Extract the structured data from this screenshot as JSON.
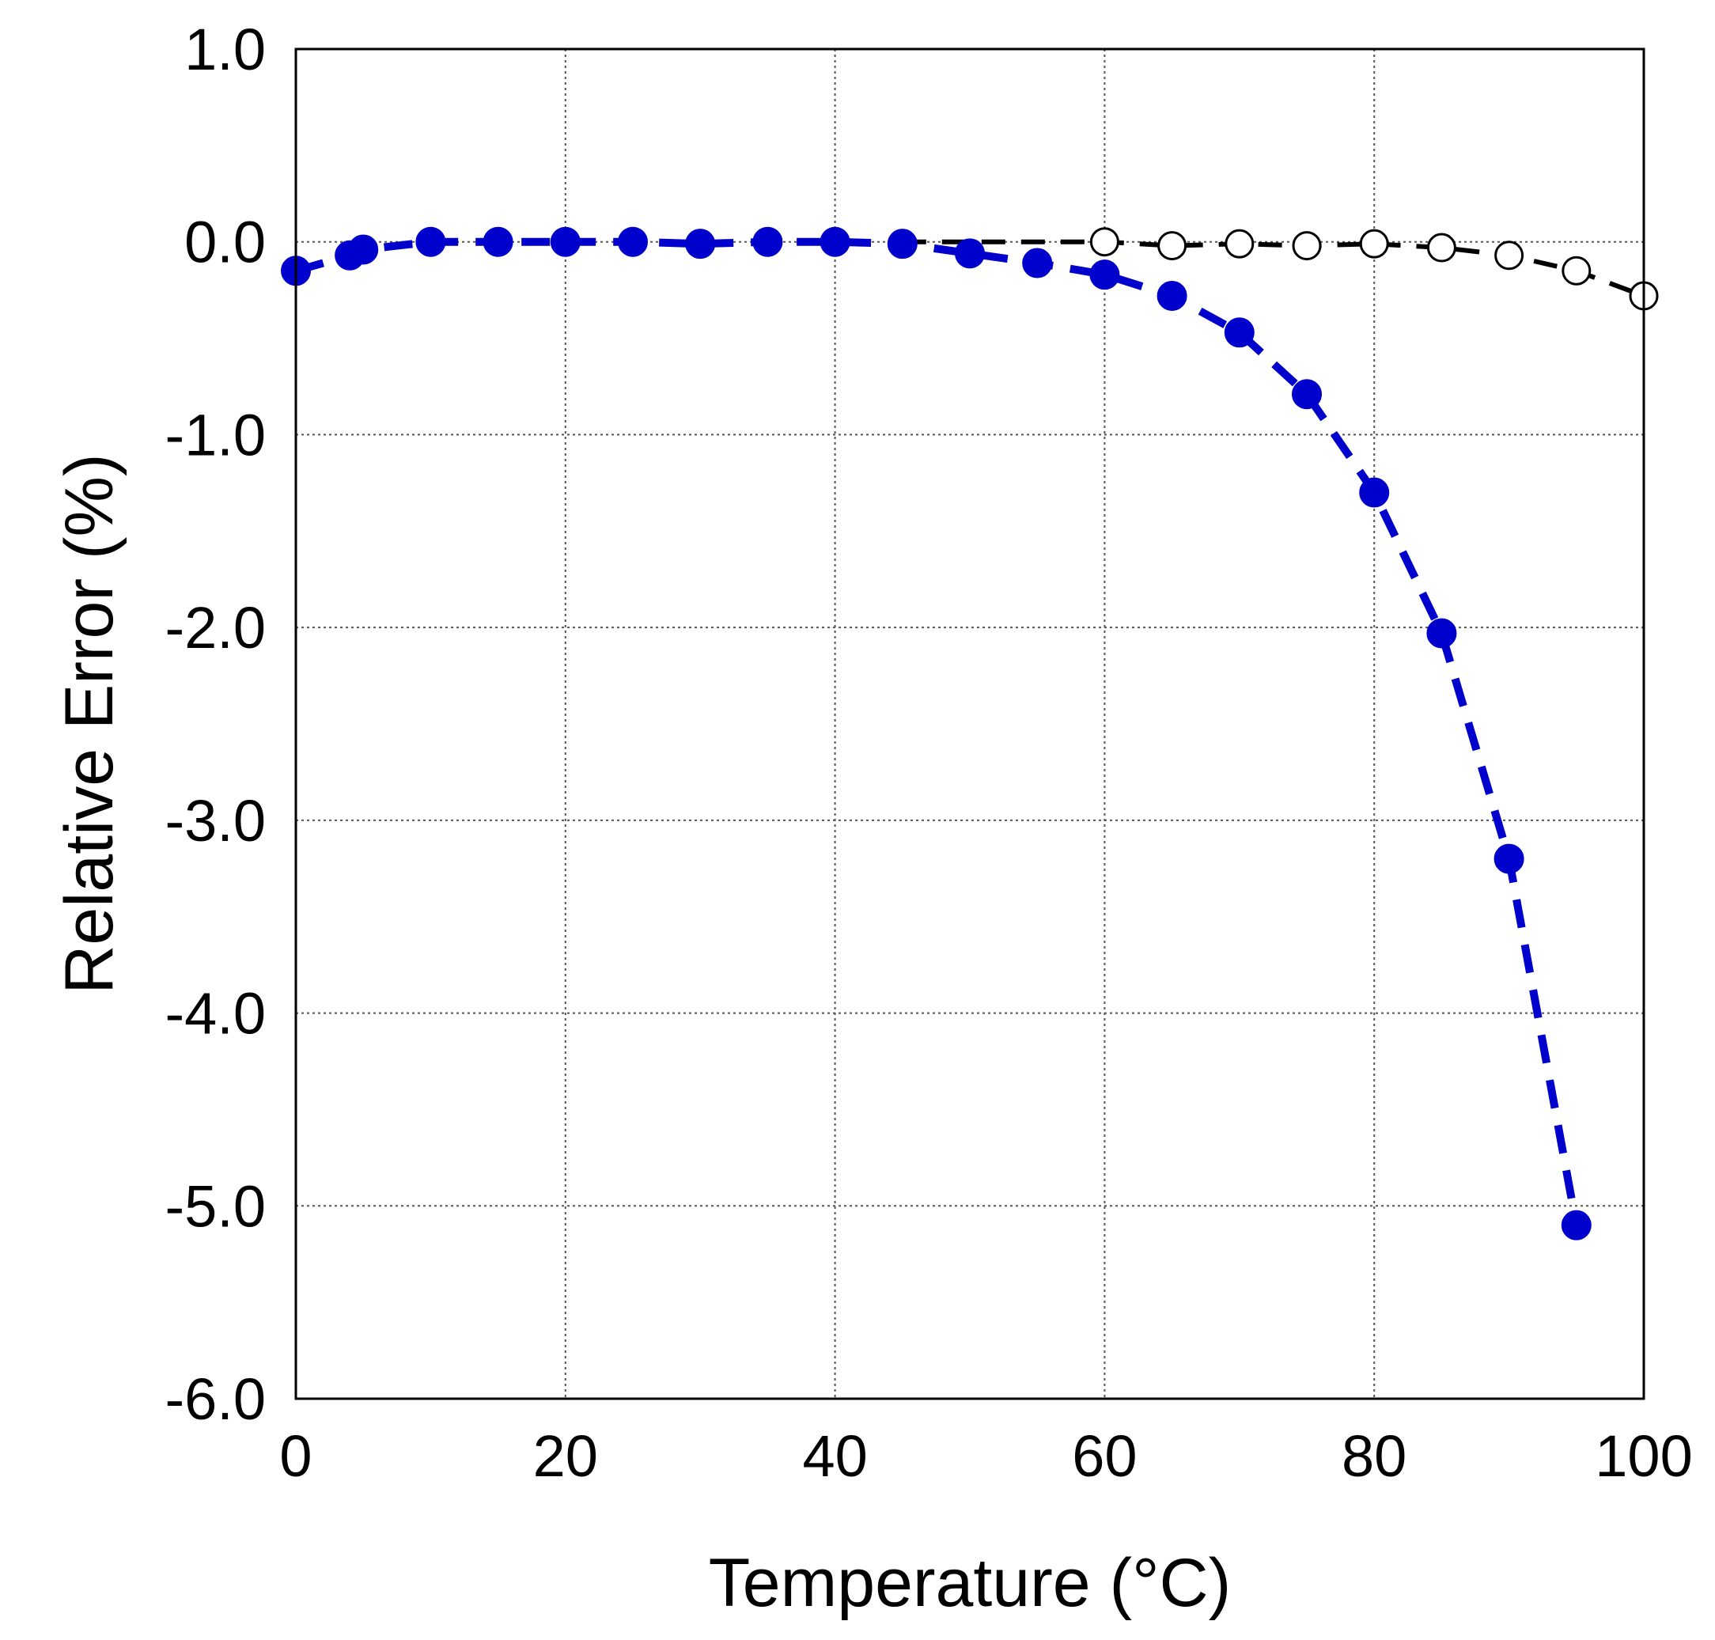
{
  "chart_data": {
    "type": "scatter",
    "title": "",
    "xlabel": "Temperature (°C)",
    "ylabel": "Relative Error (%)",
    "xlim": [
      0,
      100
    ],
    "ylim": [
      -6.0,
      1.0
    ],
    "xticks": [
      0,
      20,
      40,
      60,
      80,
      100
    ],
    "xtick_labels": [
      "0",
      "20",
      "40",
      "60",
      "80",
      "100"
    ],
    "yticks": [
      1.0,
      0.0,
      -1.0,
      -2.0,
      -3.0,
      -4.0,
      -5.0,
      -6.0
    ],
    "ytick_labels": [
      "1.0",
      "0.0",
      "-1.0",
      "-2.0",
      "-3.0",
      "-4.0",
      "-5.0",
      "-6.0"
    ],
    "grid": true,
    "legend": "none",
    "series": [
      {
        "marker": "filled-circle",
        "line": "dashed",
        "color": "#0000cc",
        "x": [
          0,
          4,
          5,
          10,
          15,
          20,
          25,
          30,
          35,
          40,
          45,
          50,
          55,
          60,
          65,
          70,
          75,
          80,
          85,
          90,
          95
        ],
        "y": [
          -0.15,
          -0.07,
          -0.04,
          0.0,
          0.0,
          0.0,
          0.0,
          -0.01,
          0.0,
          0.0,
          -0.01,
          -0.06,
          -0.11,
          -0.17,
          -0.28,
          -0.47,
          -0.79,
          -1.3,
          -2.03,
          -3.2,
          -5.1
        ]
      },
      {
        "marker": "open-circle",
        "line": "dashed",
        "color": "#000000",
        "x": [
          45,
          50,
          55,
          60,
          65,
          70,
          75,
          80,
          85,
          90,
          95,
          100
        ],
        "y": [
          0.0,
          0.0,
          0.0,
          0.0,
          -0.02,
          -0.01,
          -0.02,
          -0.01,
          -0.03,
          -0.07,
          -0.15,
          -0.28
        ],
        "markers_from_x": 60
      }
    ]
  }
}
